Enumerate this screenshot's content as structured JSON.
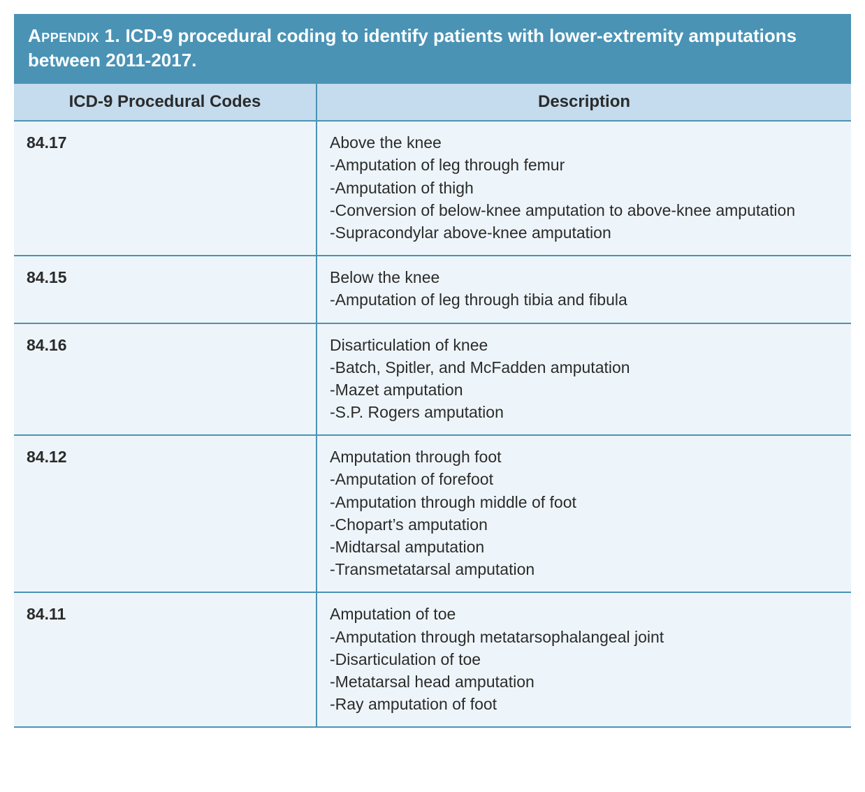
{
  "title_prefix": "Appendix 1.",
  "title_rest": " ICD-9 procedural coding to identify patients with lower-extremity amputa­tions between 2011-2017.",
  "columns": {
    "col1": "ICD-9 Procedural Codes",
    "col2": "Description"
  },
  "rows": [
    {
      "code": "84.17",
      "heading": "Above the knee",
      "lines": [
        "-Amputation of leg through femur",
        "-Amputation of thigh",
        "-Conversion of below-knee amputation to above-knee amputation",
        "-Supracondylar above-knee amputation"
      ]
    },
    {
      "code": "84.15",
      "heading": "Below the knee",
      "lines": [
        "-Amputation of leg through tibia and fibula"
      ]
    },
    {
      "code": "84.16",
      "heading": "Disarticulation of knee",
      "lines": [
        "-Batch, Spitler, and McFadden amputation",
        "-Mazet amputation",
        "-S.P. Rogers amputation"
      ]
    },
    {
      "code": "84.12",
      "heading": "Amputation through foot",
      "lines": [
        "-Amputation of forefoot",
        "-Amputation through middle of foot",
        "-Chopart’s amputation",
        "-Midtarsal amputation",
        "-Transmetatarsal amputation"
      ]
    },
    {
      "code": "84.11",
      "heading": "Amputation of toe",
      "lines": [
        "-Amputation through metatarsophalangeal joint",
        "-Disarticulation of toe",
        "-Metatarsal head amputation",
        "-Ray amputation of foot"
      ]
    }
  ],
  "style": {
    "title_bg": "#4a93b5",
    "title_color": "#ffffff",
    "header_bg": "#c4dced",
    "cell_bg": "#eef5fa",
    "border_color": "#4a93b5",
    "text_color": "#2b2b2b",
    "title_fontsize": 26,
    "header_fontsize": 24,
    "cell_fontsize": 23
  }
}
